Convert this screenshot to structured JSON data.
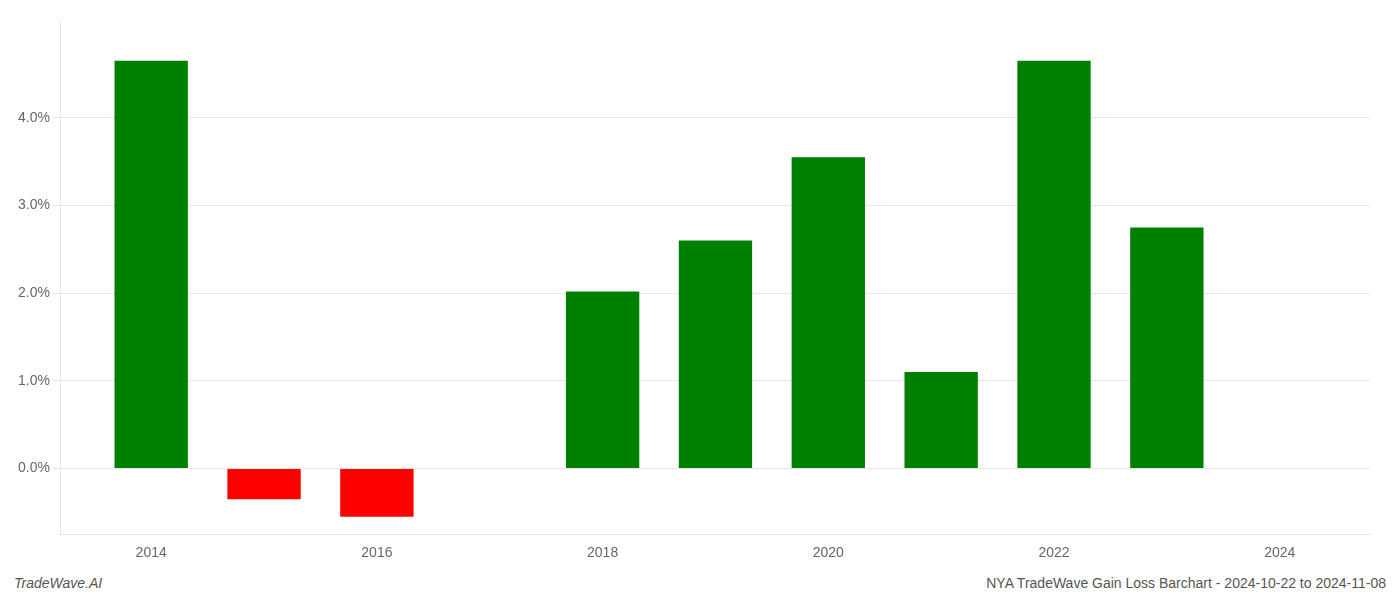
{
  "chart_data": {
    "type": "bar",
    "x": [
      2014,
      2015,
      2016,
      2018,
      2019,
      2020,
      2021,
      2022,
      2023
    ],
    "values": [
      4.65,
      -0.35,
      -0.55,
      2.02,
      2.6,
      3.55,
      1.1,
      4.65,
      2.75
    ],
    "colors": [
      "#008000",
      "#ff0000",
      "#ff0000",
      "#008000",
      "#008000",
      "#008000",
      "#008000",
      "#008000",
      "#008000"
    ],
    "xlim": [
      2013.2,
      2024.8
    ],
    "xticks": [
      2014,
      2016,
      2018,
      2020,
      2022,
      2024
    ],
    "ylim": [
      -0.75,
      5.1
    ],
    "yticks": [
      {
        "value": 0.0,
        "label": "0.0%"
      },
      {
        "value": 1.0,
        "label": "1.0%"
      },
      {
        "value": 2.0,
        "label": "2.0%"
      },
      {
        "value": 3.0,
        "label": "3.0%"
      },
      {
        "value": 4.0,
        "label": "4.0%"
      }
    ],
    "grid": true,
    "annotations": [
      "TradeWave.AI",
      "NYA TradeWave Gain Loss Barchart - 2024-10-22 to 2024-11-08"
    ]
  }
}
